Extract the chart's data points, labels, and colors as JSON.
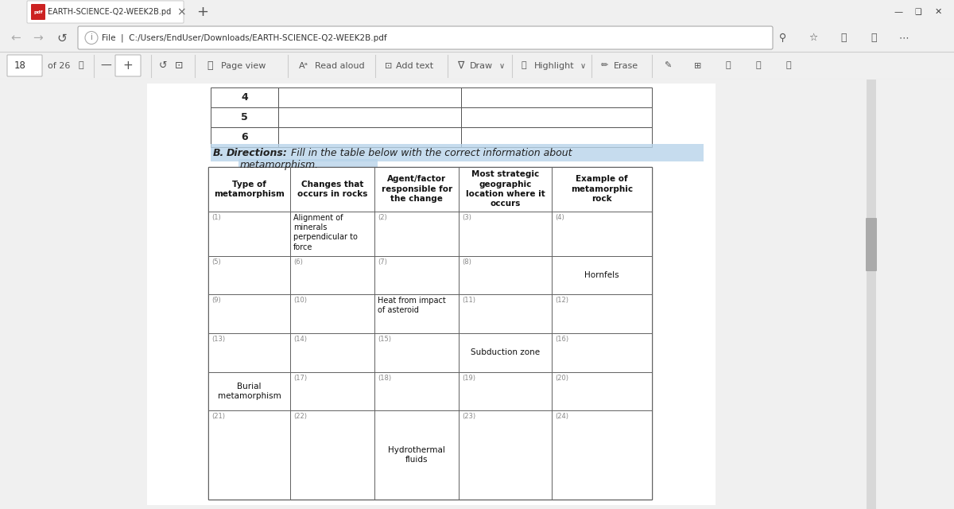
{
  "bg_color": "#e8e8e8",
  "page_bg": "#ffffff",
  "toolbar_bg": "#f0f0f0",
  "highlight_color": "#b8d4ea",
  "title_tab": "EARTH-SCIENCE-Q2-WEEK2B.pd",
  "file_path": "C:/Users/EndUser/Downloads/EARTH-SCIENCE-Q2-WEEK2B.pdf",
  "table_headers": [
    "Type of\nmetamorphism",
    "Changes that\noccurs in rocks",
    "Agent/factor\nresponsible for\nthe change",
    "Most strategic\ngeographic\nlocation where it\noccurs",
    "Example of\nmetamorphic\nrock"
  ],
  "table_rows": [
    [
      "(1)",
      "Alignment of\nminerals\nperpendicular to\nforce",
      "(2)",
      "(3)",
      "(4)"
    ],
    [
      "(5)",
      "(6)",
      "(7)",
      "(8)",
      "Hornfels"
    ],
    [
      "(9)",
      "(10)",
      "Heat from impact\nof asteroid",
      "(11)",
      "(12)"
    ],
    [
      "(13)",
      "(14)",
      "(15)",
      "Subduction zone",
      "(16)"
    ],
    [
      "Burial\nmetamorphism",
      "(17)",
      "(18)",
      "(19)",
      "(20)"
    ],
    [
      "(21)",
      "(22)",
      "Hydrothermal\nfluids",
      "(23)",
      "(24)"
    ]
  ]
}
